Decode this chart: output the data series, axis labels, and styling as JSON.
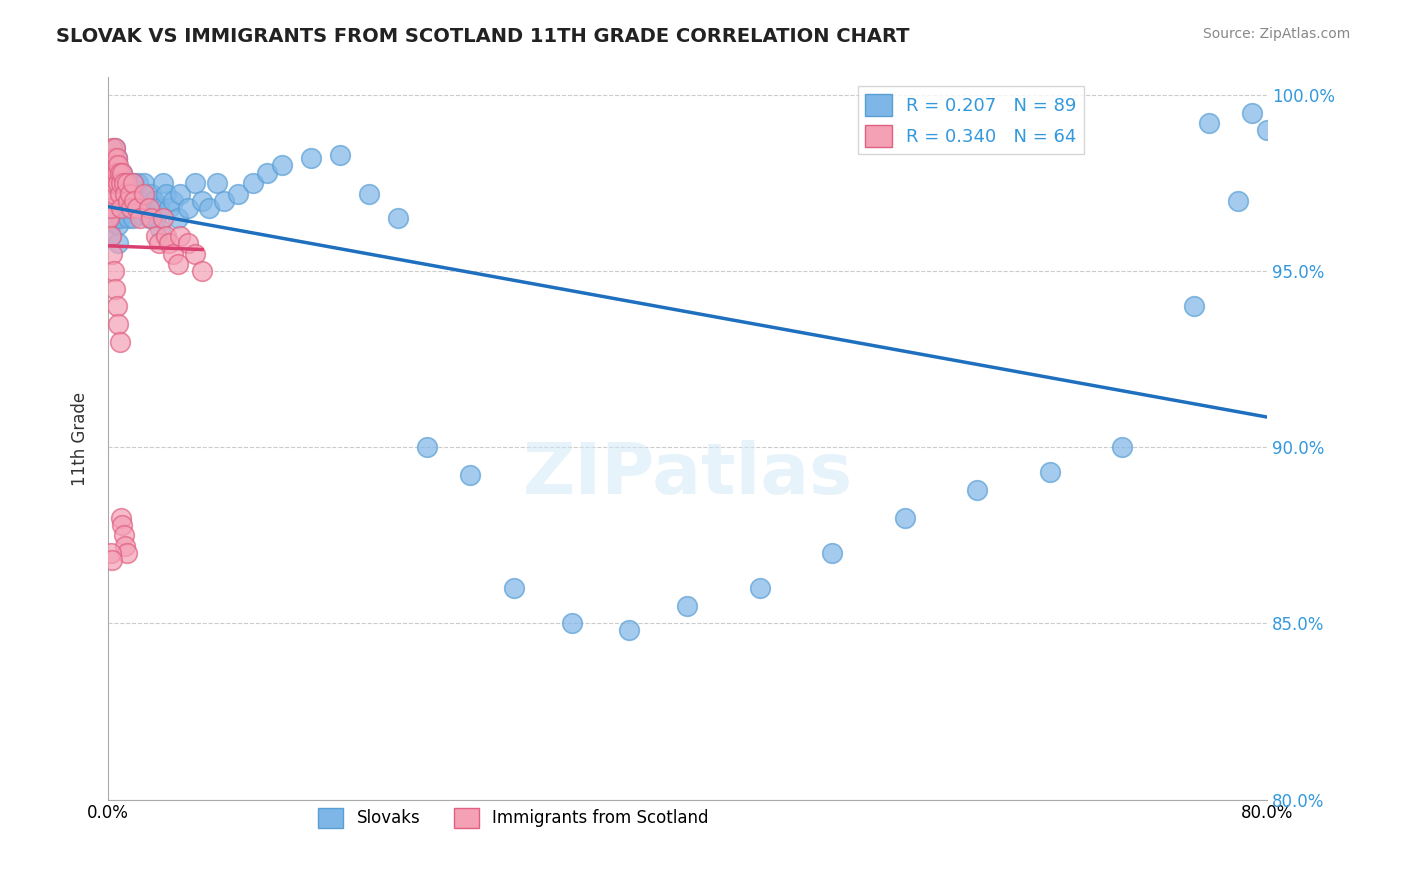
{
  "title": "SLOVAK VS IMMIGRANTS FROM SCOTLAND 11TH GRADE CORRELATION CHART",
  "source_text": "Source: ZipAtlas.com",
  "xlabel": "",
  "ylabel": "11th Grade",
  "xlim": [
    0.0,
    0.8
  ],
  "ylim": [
    0.8,
    1.005
  ],
  "ytick_labels": [
    "80.0%",
    "85.0%",
    "90.0%",
    "95.0%",
    "100.0%"
  ],
  "ytick_values": [
    0.8,
    0.85,
    0.9,
    0.95,
    1.0
  ],
  "xtick_labels": [
    "0.0%",
    "80.0%"
  ],
  "xtick_values": [
    0.0,
    0.8
  ],
  "blue_color": "#7EB6E8",
  "blue_edge_color": "#5A9FD4",
  "pink_color": "#F4A0B5",
  "pink_edge_color": "#E06080",
  "blue_line_color": "#1F6FBF",
  "pink_line_color": "#D94070",
  "r_blue": 0.207,
  "n_blue": 89,
  "r_pink": 0.34,
  "n_pink": 64,
  "legend_labels": [
    "Slovaks",
    "Immigrants from Scotland"
  ],
  "watermark": "ZIPatlas",
  "blue_scatter_x": [
    0.0,
    0.001,
    0.001,
    0.002,
    0.002,
    0.002,
    0.003,
    0.003,
    0.003,
    0.003,
    0.004,
    0.004,
    0.004,
    0.005,
    0.005,
    0.005,
    0.005,
    0.006,
    0.006,
    0.006,
    0.007,
    0.007,
    0.007,
    0.008,
    0.008,
    0.008,
    0.009,
    0.009,
    0.01,
    0.01,
    0.011,
    0.012,
    0.012,
    0.013,
    0.014,
    0.015,
    0.016,
    0.017,
    0.018,
    0.019,
    0.02,
    0.021,
    0.022,
    0.023,
    0.025,
    0.027,
    0.028,
    0.03,
    0.032,
    0.033,
    0.035,
    0.036,
    0.038,
    0.04,
    0.042,
    0.045,
    0.048,
    0.05,
    0.055,
    0.06,
    0.065,
    0.07,
    0.075,
    0.08,
    0.09,
    0.1,
    0.11,
    0.12,
    0.14,
    0.16,
    0.18,
    0.2,
    0.22,
    0.25,
    0.28,
    0.32,
    0.36,
    0.4,
    0.45,
    0.5,
    0.55,
    0.6,
    0.65,
    0.7,
    0.75,
    0.78,
    0.8,
    0.79,
    0.76
  ],
  "blue_scatter_y": [
    0.97,
    0.975,
    0.968,
    0.972,
    0.965,
    0.96,
    0.978,
    0.973,
    0.969,
    0.964,
    0.98,
    0.975,
    0.97,
    0.985,
    0.98,
    0.975,
    0.97,
    0.982,
    0.978,
    0.972,
    0.968,
    0.963,
    0.958,
    0.975,
    0.97,
    0.965,
    0.972,
    0.968,
    0.978,
    0.973,
    0.968,
    0.975,
    0.97,
    0.968,
    0.965,
    0.975,
    0.97,
    0.965,
    0.975,
    0.972,
    0.968,
    0.975,
    0.97,
    0.966,
    0.975,
    0.97,
    0.965,
    0.972,
    0.97,
    0.965,
    0.968,
    0.962,
    0.975,
    0.972,
    0.968,
    0.97,
    0.965,
    0.972,
    0.968,
    0.975,
    0.97,
    0.968,
    0.975,
    0.97,
    0.972,
    0.975,
    0.978,
    0.98,
    0.982,
    0.983,
    0.972,
    0.965,
    0.9,
    0.892,
    0.86,
    0.85,
    0.848,
    0.855,
    0.86,
    0.87,
    0.88,
    0.888,
    0.893,
    0.9,
    0.94,
    0.97,
    0.99,
    0.995,
    0.992
  ],
  "pink_scatter_x": [
    0.0,
    0.0,
    0.001,
    0.001,
    0.001,
    0.002,
    0.002,
    0.002,
    0.003,
    0.003,
    0.003,
    0.004,
    0.004,
    0.004,
    0.005,
    0.005,
    0.005,
    0.006,
    0.006,
    0.007,
    0.007,
    0.008,
    0.008,
    0.009,
    0.009,
    0.01,
    0.011,
    0.012,
    0.013,
    0.014,
    0.015,
    0.016,
    0.017,
    0.018,
    0.02,
    0.022,
    0.025,
    0.028,
    0.03,
    0.033,
    0.035,
    0.038,
    0.04,
    0.042,
    0.045,
    0.048,
    0.05,
    0.055,
    0.06,
    0.065,
    0.002,
    0.003,
    0.004,
    0.005,
    0.006,
    0.007,
    0.008,
    0.009,
    0.01,
    0.011,
    0.012,
    0.013,
    0.002,
    0.003
  ],
  "pink_scatter_y": [
    0.97,
    0.965,
    0.978,
    0.972,
    0.965,
    0.98,
    0.975,
    0.968,
    0.985,
    0.98,
    0.975,
    0.982,
    0.978,
    0.972,
    0.985,
    0.98,
    0.975,
    0.982,
    0.978,
    0.98,
    0.975,
    0.978,
    0.972,
    0.975,
    0.968,
    0.978,
    0.975,
    0.972,
    0.975,
    0.97,
    0.972,
    0.968,
    0.975,
    0.97,
    0.968,
    0.965,
    0.972,
    0.968,
    0.965,
    0.96,
    0.958,
    0.965,
    0.96,
    0.958,
    0.955,
    0.952,
    0.96,
    0.958,
    0.955,
    0.95,
    0.96,
    0.955,
    0.95,
    0.945,
    0.94,
    0.935,
    0.93,
    0.88,
    0.878,
    0.875,
    0.872,
    0.87,
    0.87,
    0.868
  ]
}
